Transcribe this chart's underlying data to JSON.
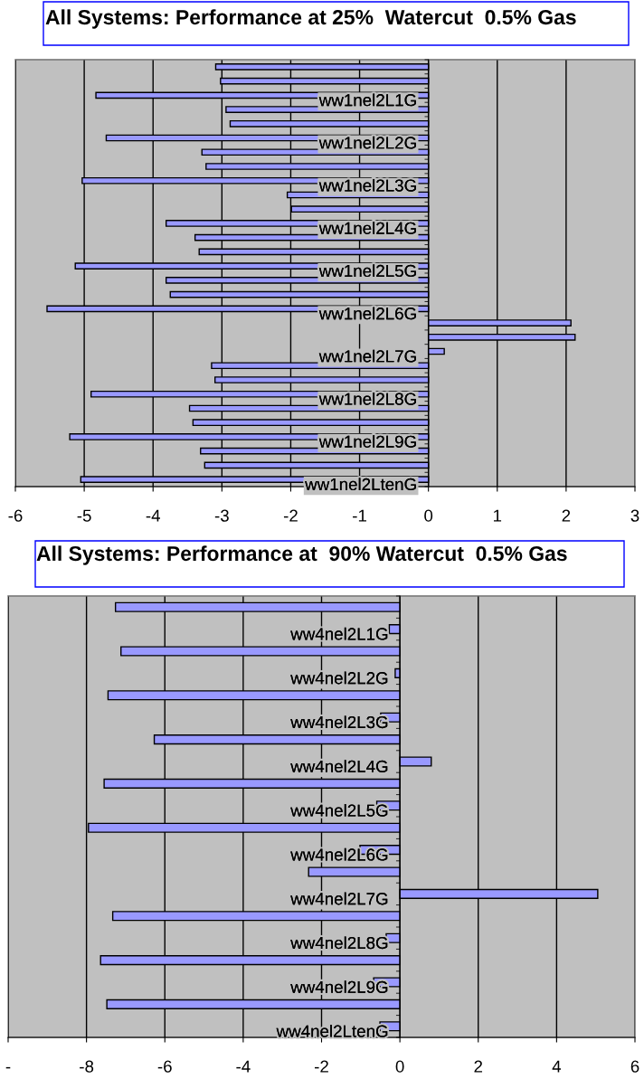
{
  "chart_data": [
    {
      "type": "bar",
      "orientation": "horizontal",
      "title": "All Systems: Performance at 25%  Watercut  0.5% Gas",
      "categories": [
        null,
        null,
        "ww1nel2L1G",
        null,
        null,
        "ww1nel2L2G",
        null,
        null,
        "ww1nel2L3G",
        null,
        null,
        "ww1nel2L4G",
        null,
        null,
        "ww1nel2L5G",
        null,
        null,
        "ww1nel2L6G",
        null,
        null,
        "ww1nel2L7G",
        null,
        null,
        "ww1nel2L8G",
        null,
        null,
        "ww1nel2L9G",
        null,
        null,
        "ww1nel2LtenG"
      ],
      "values": [
        -3.09,
        -3.02,
        -4.83,
        -2.94,
        -2.88,
        -4.68,
        -3.29,
        -3.23,
        -5.03,
        -2.05,
        -1.99,
        -3.81,
        -3.39,
        -3.33,
        -5.13,
        -3.81,
        -3.75,
        -5.54,
        2.07,
        2.13,
        0.23,
        -3.15,
        -3.1,
        -4.9,
        -3.47,
        -3.42,
        -5.21,
        -3.31,
        -3.25,
        -5.05
      ],
      "color": "#9999ff",
      "xlim": [
        -6,
        3
      ],
      "xticks": [
        -6,
        -5,
        -4,
        -3,
        -2,
        -1,
        0,
        1,
        2,
        3
      ],
      "grid": "x"
    },
    {
      "type": "bar",
      "orientation": "horizontal",
      "title": "All Systems: Performance at  90% Watercut  0.5% Gas",
      "categories": [
        null,
        "ww4nel2L1G",
        null,
        "ww4nel2L2G",
        null,
        "ww4nel2L3G",
        null,
        "ww4nel2L4G",
        null,
        "ww4nel2L5G",
        null,
        "ww4nel2L6G",
        null,
        "ww4nel2L7G",
        null,
        "ww4nel2L8G",
        null,
        "ww4nel2L9G",
        null,
        "ww4nel2LtenG"
      ],
      "values": [
        -7.26,
        -0.27,
        -7.12,
        -0.12,
        -7.45,
        -0.49,
        -6.27,
        0.8,
        -7.55,
        -0.59,
        -7.95,
        -1.02,
        -2.33,
        5.05,
        -7.33,
        -0.35,
        -7.64,
        -0.67,
        -7.48,
        -0.51
      ],
      "color": "#9999ff",
      "xlim": [
        -10,
        6
      ],
      "xticks": [
        {
          "value": -10,
          "label": "-"
        },
        -8,
        -6,
        -4,
        -2,
        0,
        2,
        4,
        6
      ],
      "grid": "x"
    }
  ]
}
